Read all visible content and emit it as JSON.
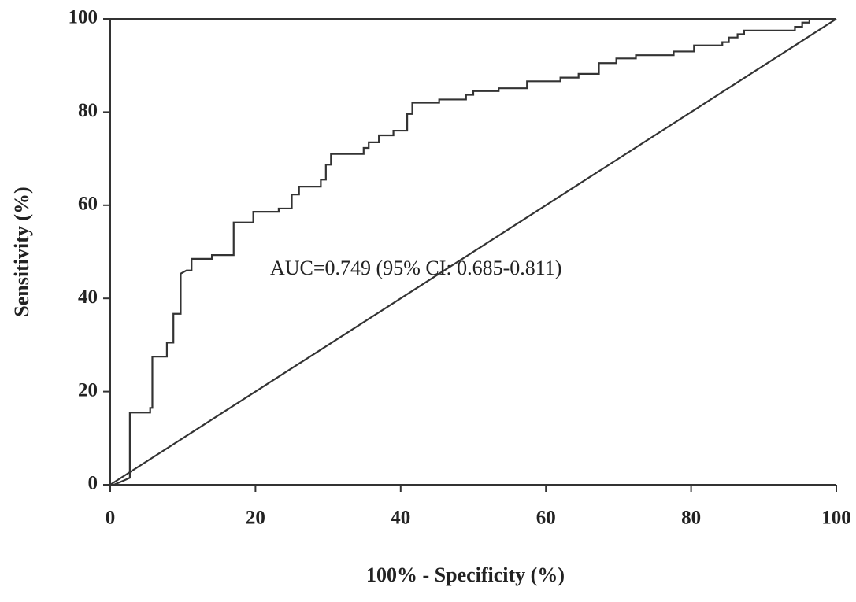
{
  "chart_data": {
    "type": "line",
    "xlabel": "100% - Specificity (%)",
    "ylabel": "Sensitivity (%)",
    "annotation": "AUC=0.749 (95% CI: 0.685-0.811)",
    "xlim": [
      0,
      100
    ],
    "ylim": [
      0,
      100
    ],
    "xticks": [
      0,
      20,
      40,
      60,
      80,
      100
    ],
    "yticks": [
      0,
      20,
      40,
      60,
      80,
      100
    ],
    "color": "#333333",
    "series": [
      {
        "x": [
          0.5,
          2,
          2.7,
          2.7,
          5.5,
          5.5,
          5.8,
          5.8,
          7.8,
          7.8,
          8.7,
          8.7,
          9.7,
          9.7,
          10.5,
          11.2,
          11.2,
          14,
          14,
          17,
          17,
          19.7,
          19.7,
          23.2,
          23.2,
          25,
          25,
          26,
          26,
          29,
          29,
          29.7,
          29.7,
          30.4,
          30.4,
          34.9,
          34.9,
          35.6,
          35.6,
          37,
          37,
          39,
          39,
          40.9,
          40.9,
          41.6,
          41.6,
          45.3,
          45.3,
          49,
          49,
          50,
          50,
          53.5,
          53.5,
          57.4,
          57.4,
          62,
          62,
          64.5,
          64.5,
          67.3,
          67.3,
          69.7,
          69.7,
          72.4,
          72.4,
          77.6,
          77.6,
          80.4,
          80.4,
          84.3,
          84.3,
          85.2,
          85.2,
          86.4,
          86.4,
          87.3,
          87.3,
          94.3,
          94.3,
          95.3,
          95.3,
          96.3,
          96.3
        ],
        "values": [
          0,
          1,
          1.5,
          15.5,
          15.5,
          16.5,
          16.5,
          27.5,
          27.5,
          30.5,
          30.5,
          36.7,
          36.7,
          45.3,
          46,
          46,
          48.5,
          48.5,
          49.3,
          49.3,
          56.3,
          56.3,
          58.6,
          58.6,
          59.3,
          59.3,
          62.3,
          62.3,
          64,
          64,
          65.5,
          65.5,
          68.7,
          68.7,
          71,
          71,
          72.3,
          72.3,
          73.5,
          73.5,
          75,
          75,
          76,
          76,
          79.6,
          79.6,
          82,
          82,
          82.7,
          82.7,
          83.7,
          83.7,
          84.5,
          84.5,
          85.1,
          85.1,
          86.6,
          86.6,
          87.4,
          87.4,
          88.2,
          88.2,
          90.5,
          90.5,
          91.5,
          91.5,
          92.2,
          92.2,
          93,
          93,
          94.3,
          94.3,
          95,
          95,
          96,
          96,
          96.7,
          96.7,
          97.5,
          97.5,
          98.3,
          98.3,
          99.2,
          99.2,
          100
        ]
      },
      {
        "x": [
          0,
          100
        ],
        "values": [
          0,
          100
        ]
      }
    ]
  }
}
